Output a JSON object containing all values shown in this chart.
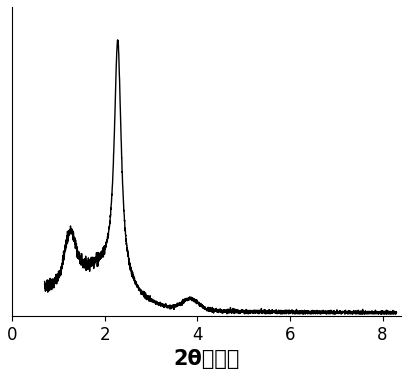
{
  "title": "",
  "xlabel": "2θ（度）",
  "xlabel_fontsize": 15,
  "ylabel": "",
  "xlim": [
    0,
    8.4
  ],
  "ylim": [
    0,
    1.12
  ],
  "line_color": "#000000",
  "line_width": 1.0,
  "tick_fontsize": 12,
  "xticks": [
    0,
    2,
    4,
    6,
    8
  ],
  "background_color": "#ffffff",
  "noise_seed": 7
}
